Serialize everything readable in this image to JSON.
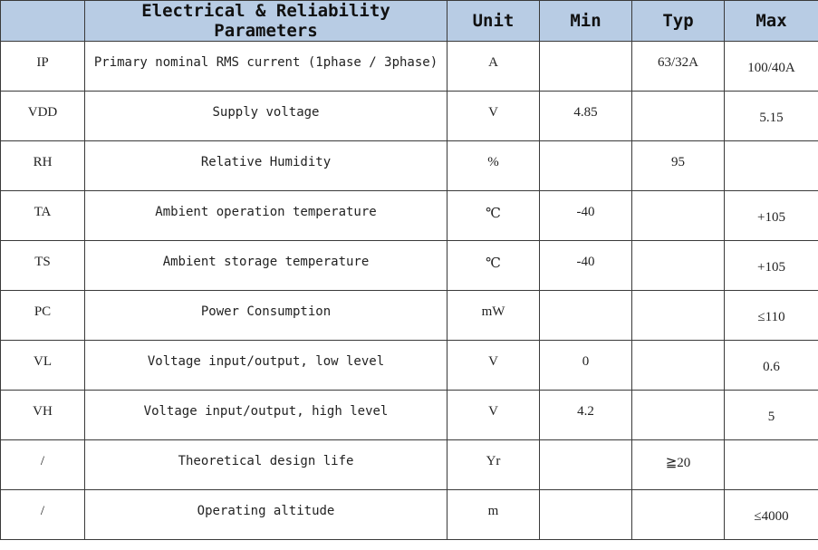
{
  "header_color": "#b8cce4",
  "headers": [
    "",
    "Electrical & Reliability Parameters",
    "Unit",
    "Min",
    "Typ",
    "Max"
  ],
  "rows": [
    {
      "symbol": "IP",
      "parameter": "Primary nominal RMS current (1phase / 3phase)",
      "unit": "A",
      "min": "",
      "typ": "63/32A",
      "max": "100/40A"
    },
    {
      "symbol": "VDD",
      "parameter": "Supply voltage",
      "unit": "V",
      "min": "4.85",
      "typ": "",
      "max": "5.15"
    },
    {
      "symbol": "RH",
      "parameter": "Relative Humidity",
      "unit": "%",
      "min": "",
      "typ": "95",
      "max": ""
    },
    {
      "symbol": "TA",
      "parameter": "Ambient operation temperature",
      "unit": "℃",
      "min": "-40",
      "typ": "",
      "max": "+105"
    },
    {
      "symbol": "TS",
      "parameter": "Ambient storage temperature",
      "unit": "℃",
      "min": "-40",
      "typ": "",
      "max": "+105"
    },
    {
      "symbol": "PC",
      "parameter": "Power Consumption",
      "unit": "mW",
      "min": "",
      "typ": "",
      "max": "≤110"
    },
    {
      "symbol": "VL",
      "parameter": "Voltage input/output, low level",
      "unit": "V",
      "min": "0",
      "typ": "",
      "max": "0.6"
    },
    {
      "symbol": "VH",
      "parameter": "Voltage input/output, high level",
      "unit": "V",
      "min": "4.2",
      "typ": "",
      "max": "5"
    },
    {
      "symbol": "/",
      "parameter": "Theoretical design life",
      "unit": "Yr",
      "min": "",
      "typ": "≧20",
      "max": ""
    },
    {
      "symbol": "/",
      "parameter": "Operating altitude",
      "unit": "m",
      "min": "",
      "typ": "",
      "max": "≤4000"
    }
  ]
}
